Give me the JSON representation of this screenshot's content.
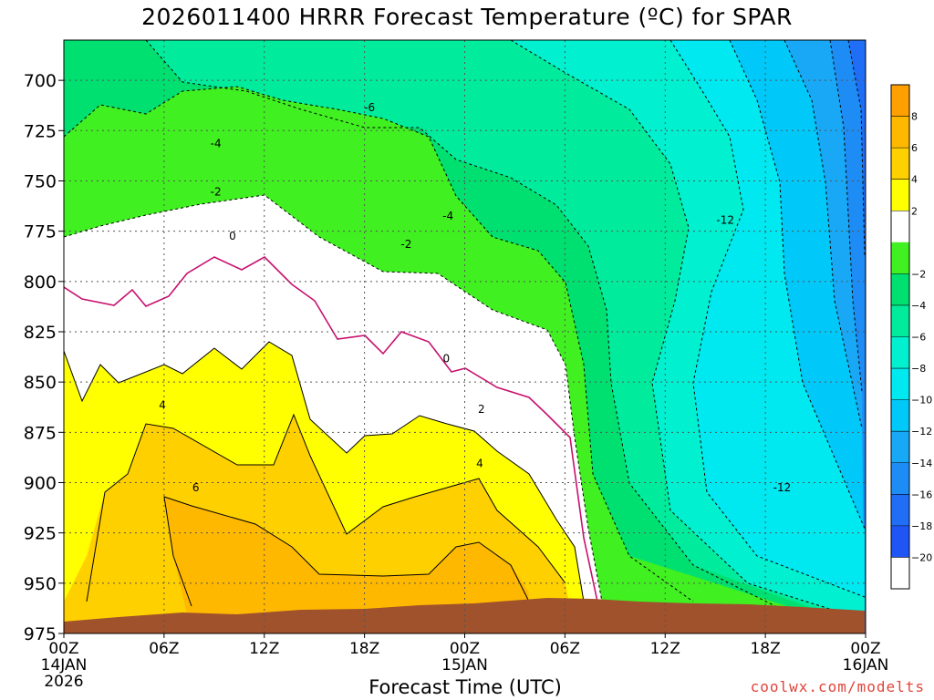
{
  "chart_data": {
    "type": "heatmap",
    "title": "2026011400 HRRR Forecast Temperature (ºC) for SPAR",
    "xlabel": "Forecast Time (UTC)",
    "ylabel": "",
    "x_range": [
      0,
      48
    ],
    "y_range": [
      975,
      680
    ],
    "y_ticks": [
      700,
      725,
      750,
      775,
      800,
      825,
      850,
      875,
      900,
      925,
      950,
      975
    ],
    "x_ticks": [
      {
        "x": 0,
        "label": "00Z",
        "sub": "14JAN",
        "sub2": "2026"
      },
      {
        "x": 6,
        "label": "06Z"
      },
      {
        "x": 12,
        "label": "12Z"
      },
      {
        "x": 18,
        "label": "18Z"
      },
      {
        "x": 24,
        "label": "00Z",
        "sub": "15JAN"
      },
      {
        "x": 30,
        "label": "06Z"
      },
      {
        "x": 36,
        "label": "12Z"
      },
      {
        "x": 42,
        "label": "18Z"
      },
      {
        "x": 48,
        "label": "00Z",
        "sub": "16JAN"
      }
    ],
    "grid": true,
    "colorbar": {
      "position": "right",
      "levels": [
        -22,
        -20,
        -18,
        -16,
        -14,
        -12,
        -10,
        -8,
        -6,
        -4,
        -2,
        0,
        2,
        4,
        6,
        8,
        10
      ],
      "labels": [
        "8",
        "6",
        "4",
        "2",
        "−2",
        "−4",
        "−6",
        "−8",
        "−10",
        "−12",
        "−14",
        "−16",
        "−18",
        "−20"
      ],
      "label_values": [
        8,
        6,
        4,
        2,
        -2,
        -4,
        -6,
        -8,
        -10,
        -12,
        -14,
        -16,
        -18,
        -20
      ]
    },
    "contour_labels": [
      {
        "text": "-6",
        "x": 18.3,
        "y": 713
      },
      {
        "text": "-4",
        "x": 9.1,
        "y": 731
      },
      {
        "text": "-2",
        "x": 9.1,
        "y": 755
      },
      {
        "text": "0",
        "x": 10.1,
        "y": 777
      },
      {
        "text": "-2",
        "x": 20.5,
        "y": 781
      },
      {
        "text": "-4",
        "x": 23.0,
        "y": 767
      },
      {
        "text": "-12",
        "x": 39.6,
        "y": 769
      },
      {
        "text": "0",
        "x": 22.9,
        "y": 838
      },
      {
        "text": "4",
        "x": 5.9,
        "y": 861
      },
      {
        "text": "2",
        "x": 25.0,
        "y": 863
      },
      {
        "text": "4",
        "x": 24.9,
        "y": 890
      },
      {
        "text": "6",
        "x": 7.9,
        "y": 902
      },
      {
        "text": "-12",
        "x": 43.0,
        "y": 902
      }
    ]
  },
  "credit": "coolwx.com/modelts"
}
